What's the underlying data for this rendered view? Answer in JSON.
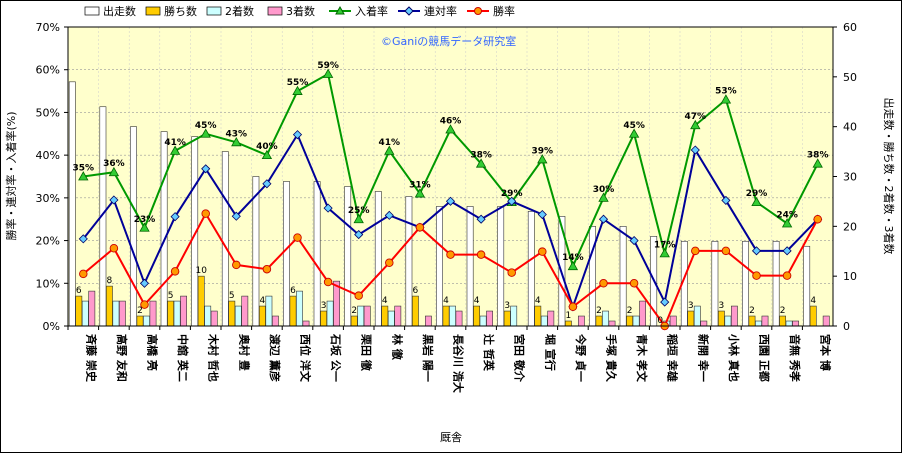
{
  "chart_data": {
    "type": "bar",
    "watermark": "©Ganiの競馬データ研究室",
    "xlabel": "厩舎",
    "ylabel_left": "勝率・連対率・入着率(%)",
    "ylabel_right": "出走数・勝ち数・2着数・3着数",
    "ylim_left": [
      0,
      70
    ],
    "ylim_right": [
      0,
      60
    ],
    "left_ticks": [
      "0%",
      "10%",
      "20%",
      "30%",
      "40%",
      "50%",
      "60%",
      "70%"
    ],
    "right_ticks": [
      "0",
      "10",
      "20",
      "30",
      "40",
      "50",
      "60"
    ],
    "grid": true,
    "legend_position": "top",
    "categories": [
      "斉藤 崇史",
      "高野 友和",
      "高橋 亮",
      "中舘 英二",
      "木村 哲也",
      "奥村 豊",
      "渡辺 薫彦",
      "西位 洋文",
      "石坂 公一",
      "栗田 徹",
      "林 徹",
      "黒岩 陽一",
      "長谷川 浩大",
      "辻 哲英",
      "宮田 敬介",
      "堀 宣行",
      "今野 貞一",
      "手塚 貴久",
      "青木 孝文",
      "稲垣 幸雄",
      "新開 幸一",
      "小林 真也",
      "西園 正都",
      "音無 秀孝",
      "宮本 博"
    ],
    "series": [
      {
        "name": "出走数",
        "kind": "bar",
        "axis": "right",
        "color": "#ffffff",
        "values": [
          49,
          44,
          40,
          39,
          38,
          35,
          30,
          29,
          29,
          28,
          27,
          26,
          24,
          24,
          24,
          23,
          22,
          20,
          20,
          18,
          17,
          17,
          17,
          17,
          16
        ]
      },
      {
        "name": "勝ち数",
        "kind": "bar",
        "axis": "right",
        "color": "#ffcc00",
        "values": [
          6,
          8,
          2,
          5,
          10,
          5,
          4,
          6,
          3,
          2,
          4,
          6,
          4,
          4,
          3,
          4,
          1,
          2,
          2,
          0,
          3,
          3,
          2,
          2,
          4
        ]
      },
      {
        "name": "2着数",
        "kind": "bar",
        "axis": "right",
        "color": "#ccffff",
        "values": [
          5,
          5,
          2,
          5,
          4,
          4,
          6,
          7,
          5,
          4,
          3,
          0,
          4,
          2,
          4,
          2,
          0,
          3,
          2,
          1,
          4,
          2,
          1,
          1,
          0
        ]
      },
      {
        "name": "3着数",
        "kind": "bar",
        "axis": "right",
        "color": "#ff99cc",
        "values": [
          7,
          5,
          5,
          6,
          3,
          6,
          2,
          1,
          9,
          4,
          4,
          2,
          3,
          3,
          0,
          3,
          2,
          1,
          5,
          2,
          1,
          4,
          2,
          1,
          2
        ]
      },
      {
        "name": "入着率",
        "kind": "line",
        "axis": "left",
        "color": "#009900",
        "values": [
          35,
          36,
          23,
          41,
          45,
          43,
          40,
          55,
          59,
          25,
          41,
          31,
          46,
          38,
          29,
          39,
          14,
          30,
          45,
          17,
          47,
          53,
          29,
          24,
          38
        ]
      },
      {
        "name": "連対率",
        "kind": "line",
        "axis": "left",
        "color": "#000099",
        "values": [
          20.4,
          29.5,
          10.0,
          25.6,
          36.8,
          25.7,
          33.3,
          44.8,
          27.6,
          21.4,
          25.9,
          23.1,
          29.2,
          25.0,
          29.2,
          26.1,
          4.5,
          25.0,
          20.0,
          5.6,
          41.2,
          29.4,
          17.6,
          17.6,
          25.0
        ]
      },
      {
        "name": "勝率",
        "kind": "line",
        "axis": "left",
        "color": "#ff0000",
        "values": [
          12.2,
          18.2,
          5.0,
          12.8,
          26.3,
          14.3,
          13.3,
          20.7,
          10.3,
          7.1,
          14.8,
          23.1,
          16.7,
          16.7,
          12.5,
          17.4,
          4.5,
          10.0,
          10.0,
          0,
          17.6,
          17.6,
          11.8,
          11.8,
          25.0
        ]
      }
    ],
    "bar_labels": {
      "wins": [
        "6",
        "8",
        "2",
        "5",
        "10",
        "5",
        "4",
        "6",
        "3",
        "2",
        "4",
        "6",
        "4",
        "4",
        "3",
        "4",
        "1",
        "2",
        "2",
        "0",
        "3",
        "3",
        "2",
        "2",
        "4"
      ],
      "place_rate": [
        "35%",
        "36%",
        "23%",
        "41%",
        "45%",
        "43%",
        "40%",
        "55%",
        "59%",
        "25%",
        "41%",
        "31%",
        "46%",
        "38%",
        "29%",
        "39%",
        "14%",
        "30%",
        "45%",
        "17%",
        "47%",
        "53%",
        "29%",
        "24%",
        "38%"
      ]
    }
  }
}
